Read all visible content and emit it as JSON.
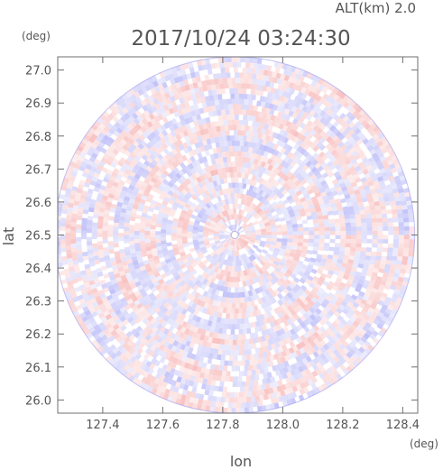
{
  "chart_data": {
    "type": "heatmap",
    "title": "2017/10/24 03:24:30",
    "altitude_label": "ALT(km) 2.0",
    "xlabel": "lon",
    "ylabel": "lat",
    "x_unit": "(deg)",
    "y_unit": "(deg)",
    "xlim": [
      127.25,
      128.45
    ],
    "ylim": [
      25.96,
      27.04
    ],
    "x_ticks": [
      127.4,
      127.6,
      127.8,
      128.0,
      128.2,
      128.4
    ],
    "x_tick_labels": [
      "127.4",
      "127.6",
      "127.8",
      "128.0",
      "128.2",
      "128.4"
    ],
    "y_ticks": [
      26.0,
      26.1,
      26.2,
      26.3,
      26.4,
      26.5,
      26.6,
      26.7,
      26.8,
      26.9,
      27.0
    ],
    "y_tick_labels": [
      "26.0",
      "26.1",
      "26.2",
      "26.3",
      "26.4",
      "26.5",
      "26.6",
      "26.7",
      "26.8",
      "26.9",
      "27.0"
    ],
    "radar_center": {
      "lon": 127.84,
      "lat": 26.5
    },
    "radar_range_lon": 0.6,
    "radar_range_lat": 0.54,
    "colors": {
      "positive": "#f6a6a6",
      "negative": "#a6a6f6",
      "axis": "#6f6f6f",
      "text": "#555555"
    }
  }
}
